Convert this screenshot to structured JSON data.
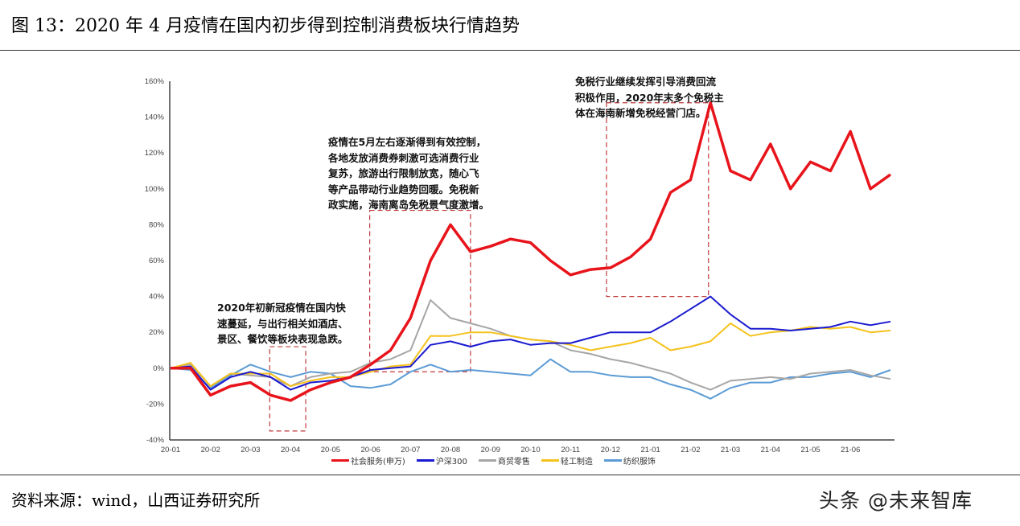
{
  "header": {
    "title": "图 13：2020 年 4 月疫情在国内初步得到控制消费板块行情趋势"
  },
  "footer": {
    "source": "资料来源：wind，山西证券研究所",
    "watermark": "头条 @未来智库"
  },
  "annotations": [
    "2020年初新冠疫情在国内快\n速蔓延，与出行相关如酒店、\n景区、餐饮等板块表现急跌。",
    "疫情在5月左右逐渐得到有效控制，\n各地发放消费券刺激可选消费行业\n复苏，旅游出行限制放宽，随心飞\n等产品带动行业趋势回暖。免税新\n政实施，海南离岛免税景气度激增。",
    "免税行业继续发挥引导消费回流\n积极作用，2020年末多个免税主\n体在海南新增免税经营门店。"
  ],
  "chart_data": {
    "type": "line",
    "title": "",
    "xlabel": "",
    "ylabel": "",
    "x_tick_labels": [
      "20-01",
      "20-02",
      "20-03",
      "20-04",
      "20-05",
      "20-06",
      "20-07",
      "20-08",
      "20-09",
      "20-10",
      "20-11",
      "20-12",
      "21-01",
      "21-02",
      "21-03",
      "21-04",
      "21-05",
      "21-06"
    ],
    "y_tick_labels": [
      "160%",
      "140%",
      "120%",
      "100%",
      "80%",
      "60%",
      "40%",
      "20%",
      "0%",
      "-20%",
      "-40%"
    ],
    "ylim": [
      -40,
      160
    ],
    "x_unit": "months since 2020-01",
    "x": [
      0,
      0.5,
      1,
      1.5,
      2,
      2.5,
      3,
      3.5,
      4,
      4.5,
      5,
      5.5,
      6,
      6.5,
      7,
      7.5,
      8,
      8.5,
      9,
      9.5,
      10,
      10.5,
      11,
      11.5,
      12,
      12.5,
      13,
      13.5,
      14,
      14.5,
      15,
      15.5,
      16,
      16.5,
      17,
      17.5,
      18
    ],
    "legend_position": "bottom",
    "series": [
      {
        "name": "社会服务(申万)",
        "color": "#e8141b",
        "values": [
          0,
          0,
          -15,
          -10,
          -8,
          -15,
          -18,
          -12,
          -8,
          -5,
          2,
          10,
          28,
          60,
          80,
          65,
          68,
          72,
          70,
          60,
          52,
          55,
          56,
          62,
          72,
          98,
          105,
          148,
          110,
          105,
          125,
          100,
          115,
          110,
          132,
          100,
          108
        ]
      },
      {
        "name": "沪深300",
        "color": "#1a1ad0",
        "values": [
          0,
          1,
          -12,
          -5,
          -2,
          -5,
          -12,
          -8,
          -7,
          -5,
          -1,
          0,
          1,
          13,
          15,
          12,
          15,
          16,
          13,
          14,
          14,
          17,
          20,
          20,
          20,
          26,
          33,
          40,
          30,
          22,
          22,
          21,
          22,
          23,
          26,
          24,
          26
        ]
      },
      {
        "name": "商贸零售",
        "color": "#a6a6a6",
        "values": [
          0,
          2,
          -10,
          -3,
          -4,
          -5,
          -10,
          -5,
          -3,
          -2,
          3,
          5,
          10,
          38,
          28,
          25,
          22,
          18,
          16,
          15,
          10,
          8,
          5,
          3,
          0,
          -3,
          -8,
          -12,
          -7,
          -6,
          -5,
          -6,
          -3,
          -2,
          -1,
          -4,
          -6
        ]
      },
      {
        "name": "轻工制造",
        "color": "#f5c21b",
        "values": [
          0,
          3,
          -10,
          -3,
          -3,
          -3,
          -10,
          -7,
          -5,
          -5,
          -2,
          1,
          2,
          18,
          18,
          20,
          20,
          18,
          16,
          15,
          13,
          10,
          12,
          14,
          17,
          10,
          12,
          15,
          25,
          18,
          20,
          21,
          23,
          22,
          23,
          20,
          21
        ]
      },
      {
        "name": "纺织服饰",
        "color": "#5b9bd5",
        "values": [
          0,
          -1,
          -11,
          -4,
          2,
          -2,
          -5,
          -2,
          -3,
          -10,
          -11,
          -9,
          -2,
          2,
          -2,
          -1,
          -2,
          -3,
          -4,
          5,
          -2,
          -2,
          -4,
          -5,
          -5,
          -9,
          -12,
          -17,
          -11,
          -8,
          -8,
          -5,
          -5,
          -3,
          -2,
          -5,
          -1
        ]
      }
    ]
  }
}
